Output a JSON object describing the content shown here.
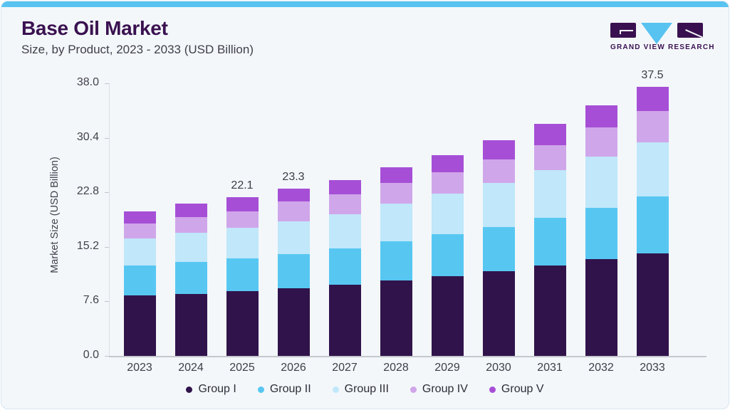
{
  "header": {
    "title": "Base Oil Market",
    "subtitle": "Size, by Product, 2023 - 2033 (USD Billion)",
    "brand": "GRAND VIEW RESEARCH"
  },
  "colors": {
    "accent_blue": "#58C3F0",
    "brand_purple": "#3A1150",
    "card_bg": "#F3F7FA",
    "text_dark": "#403E4A",
    "axis_gray": "#C5C8CE"
  },
  "chart_data": {
    "type": "bar",
    "stacked": true,
    "title": "Base Oil Market Size, by Product, 2023 - 2033 (USD Billion)",
    "ylabel": "Market Size (USD Billion)",
    "categories": [
      "2023",
      "2024",
      "2025",
      "2026",
      "2027",
      "2028",
      "2029",
      "2030",
      "2031",
      "2032",
      "2033"
    ],
    "series": [
      {
        "name": "Group I",
        "color": "#31134B",
        "values": [
          8.4,
          8.6,
          9.0,
          9.4,
          9.9,
          10.5,
          11.1,
          11.8,
          12.6,
          13.5,
          14.3
        ]
      },
      {
        "name": "Group II",
        "color": "#57C7F2",
        "values": [
          4.2,
          4.5,
          4.6,
          4.8,
          5.1,
          5.5,
          5.9,
          6.2,
          6.6,
          7.1,
          7.9
        ]
      },
      {
        "name": "Group III",
        "color": "#C0E7FA",
        "values": [
          3.8,
          4.1,
          4.3,
          4.6,
          4.7,
          5.2,
          5.6,
          6.1,
          6.7,
          7.2,
          7.6
        ]
      },
      {
        "name": "Group IV",
        "color": "#D0A6EA",
        "values": [
          2.1,
          2.1,
          2.2,
          2.7,
          2.8,
          2.9,
          3.0,
          3.3,
          3.5,
          4.0,
          4.3
        ]
      },
      {
        "name": "Group V",
        "color": "#A64FD6",
        "values": [
          1.6,
          1.9,
          2.0,
          1.8,
          2.0,
          2.2,
          2.4,
          2.7,
          2.9,
          3.1,
          3.4
        ]
      }
    ],
    "totals": [
      20.1,
      21.2,
      22.1,
      23.3,
      24.5,
      26.3,
      28.0,
      30.1,
      32.3,
      34.9,
      37.5
    ],
    "bar_total_labels": {
      "2025": "22.1",
      "2026": "23.3",
      "2033": "37.5"
    },
    "ylim": [
      0,
      38.0
    ],
    "ytick_labels": [
      "0.0",
      "7.6",
      "15.2",
      "22.8",
      "30.4",
      "38.0"
    ],
    "grid": false,
    "legend_position": "bottom"
  }
}
